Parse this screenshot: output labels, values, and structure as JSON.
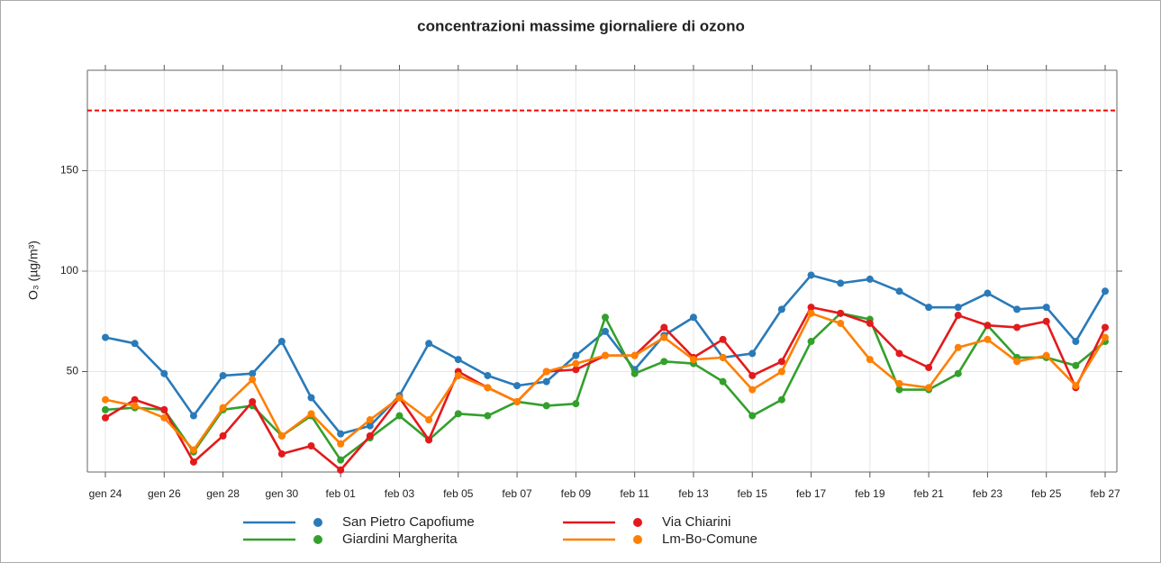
{
  "chart_data": {
    "type": "line",
    "title": "concentrazioni massime giornaliere di ozono",
    "y_label": "O₃ (µg/m³)",
    "categories": [
      "gen 24",
      null,
      "gen 26",
      null,
      "gen 28",
      null,
      "gen 30",
      null,
      "feb 01",
      null,
      "feb 03",
      null,
      "feb 05",
      null,
      "feb 07",
      null,
      "feb 09",
      null,
      "feb 11",
      null,
      "feb 13",
      null,
      "feb 15",
      null,
      "feb 17",
      null,
      "feb 19",
      null,
      "feb 21",
      null,
      "feb 23",
      null,
      "feb 25",
      null,
      "feb 27"
    ],
    "series": [
      {
        "name": "San Pietro Capofiume",
        "color": "#2a7ab8",
        "values": [
          67,
          64,
          49,
          28,
          48,
          49,
          65,
          37,
          19,
          23,
          38,
          64,
          56,
          48,
          43,
          45,
          58,
          70,
          51,
          68,
          77,
          57,
          59,
          81,
          98,
          94,
          96,
          90,
          82,
          82,
          89,
          81,
          82,
          65,
          90
        ]
      },
      {
        "name": "Giardini Margherita",
        "color": "#33a02c",
        "values": [
          31,
          32,
          31,
          10,
          31,
          33,
          18,
          28,
          6,
          17,
          28,
          16,
          29,
          28,
          35,
          33,
          34,
          77,
          49,
          55,
          54,
          45,
          28,
          36,
          65,
          79,
          76,
          41,
          41,
          49,
          73,
          57,
          57,
          53,
          65
        ]
      },
      {
        "name": "Via Chiarini",
        "color": "#e31a1c",
        "values": [
          27,
          36,
          31,
          5,
          18,
          35,
          9,
          13,
          1,
          18,
          37,
          16,
          50,
          42,
          35,
          50,
          51,
          58,
          58,
          72,
          57,
          66,
          48,
          55,
          82,
          79,
          74,
          59,
          52,
          78,
          73,
          72,
          75,
          42,
          72
        ]
      },
      {
        "name": "Lm-Bo-Comune",
        "color": "#ff7f00",
        "values": [
          36,
          33,
          27,
          11,
          32,
          46,
          18,
          29,
          14,
          26,
          37,
          26,
          48,
          42,
          35,
          50,
          54,
          58,
          58,
          67,
          56,
          57,
          41,
          50,
          79,
          74,
          56,
          44,
          42,
          62,
          66,
          55,
          58,
          43,
          67
        ]
      }
    ],
    "threshold": 180,
    "threshold_color": "#ff0000",
    "ylim": [
      0,
      200
    ],
    "yticks": [
      50,
      100,
      150
    ],
    "grid": true,
    "legend": "bottom"
  }
}
